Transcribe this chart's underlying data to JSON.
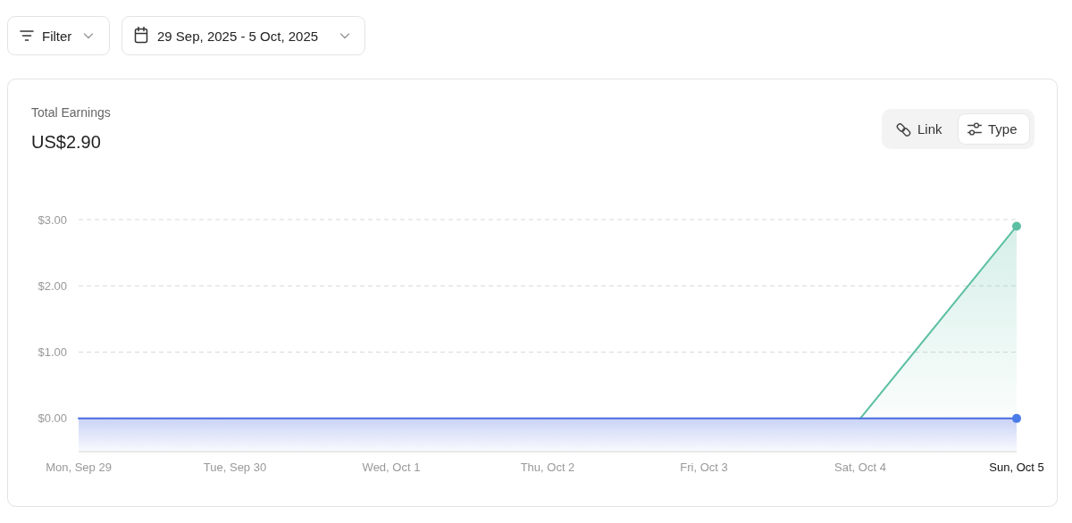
{
  "chart_data": {
    "type": "area",
    "title": "Total Earnings",
    "subtitle": "US$2.90",
    "annotations": [
      "Filter",
      "29 Sep, 2025 - 5 Oct, 2025",
      "Link",
      "Type"
    ],
    "categories": [
      "Mon, Sep 29",
      "Tue, Sep 30",
      "Wed, Oct 1",
      "Thu, Oct 2",
      "Fri, Oct 3",
      "Sat, Oct 4",
      "Sun, Oct 5"
    ],
    "series": [
      {
        "color": "#5cbfa3",
        "values": [
          null,
          null,
          null,
          null,
          null,
          0,
          2.9
        ]
      },
      {
        "type": "line",
        "color": "#4b6be0",
        "values": [
          0,
          0,
          0,
          0,
          0,
          0,
          0
        ]
      },
      {
        "type": "scatter",
        "color": "#5cbfa3",
        "x": [
          "Sun, Oct 5"
        ],
        "values": [
          2.9
        ]
      },
      {
        "type": "scatter",
        "color": "#4a7be8",
        "x": [
          "Sun, Oct 5"
        ],
        "values": [
          0
        ]
      }
    ],
    "bands": [
      {
        "axis": "y",
        "from": -0.5,
        "to": 0,
        "color": "#4b6be0"
      }
    ],
    "ylim": [
      -0.5,
      3
    ],
    "yticks": [
      {
        "value": 0,
        "label": "$0.00"
      },
      {
        "value": 1,
        "label": "$1.00"
      },
      {
        "value": 2,
        "label": "$2.00"
      },
      {
        "value": 3,
        "label": "$3.00"
      }
    ],
    "grid": "y"
  }
}
